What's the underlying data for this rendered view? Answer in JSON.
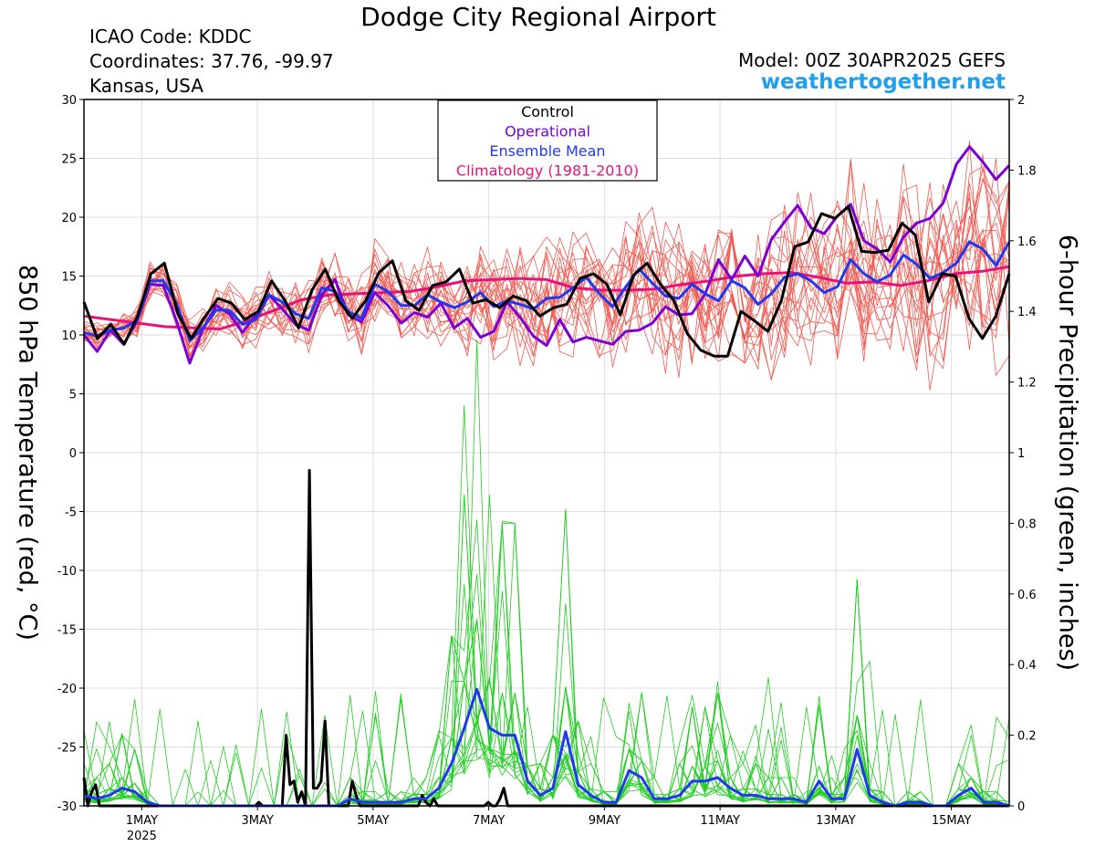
{
  "header": {
    "title": "Dodge City Regional Airport",
    "icao": "ICAO Code: KDDC",
    "coords": "Coordinates: 37.76, -99.97",
    "state": "Kansas, USA",
    "model": "Model: 00Z 30APR2025 GEFS",
    "site": "weathertogether.net"
  },
  "colors": {
    "control": "#000000",
    "operational": "#7b00d4",
    "ensemble_mean": "#2038f0",
    "climatology": "#e8127a",
    "members_temp": "#f05a50",
    "members_precip": "#22cc22"
  },
  "chart_data": {
    "type": "line",
    "title": "Dodge City Regional Airport",
    "ylabel": "850 hPa Temperature (red, °C)",
    "y2label": "6-hour Precipitation (green, inches)",
    "ylim": [
      -30,
      30
    ],
    "y2lim": [
      0,
      2
    ],
    "yticks": [
      "30",
      "25",
      "20",
      "15",
      "10",
      "5",
      "0",
      "-5",
      "-10",
      "-15",
      "-20",
      "-25",
      "-30"
    ],
    "y2ticks": [
      "2",
      "1.8",
      "1.6",
      "1.4",
      "1.2",
      "1",
      "0.8",
      "0.6",
      "0.4",
      "0.2",
      "0"
    ],
    "xlim_days": [
      0,
      16
    ],
    "xticks": [
      {
        "day": 1,
        "label": "1MAY",
        "sub": "2025"
      },
      {
        "day": 3,
        "label": "3MAY"
      },
      {
        "day": 5,
        "label": "5MAY"
      },
      {
        "day": 7,
        "label": "7MAY"
      },
      {
        "day": 9,
        "label": "9MAY"
      },
      {
        "day": 11,
        "label": "11MAY"
      },
      {
        "day": 13,
        "label": "13MAY"
      },
      {
        "day": 15,
        "label": "15MAY"
      }
    ],
    "legend": [
      "Control",
      "Operational",
      "Ensemble Mean",
      "Climatology (1981-2010)"
    ],
    "legend_position": "top-center",
    "grid": true,
    "series": [
      {
        "name": "Control",
        "axis": "temp",
        "values": [
          12.8,
          9.7,
          10.9,
          9.2,
          11.6,
          15.2,
          16.1,
          11.8,
          9.7,
          11.5,
          13.1,
          12.7,
          11.3,
          12.0,
          14.6,
          12.9,
          10.6,
          13.8,
          15.6,
          12.9,
          11.4,
          12.9,
          15.3,
          16.3,
          12.9,
          12.1,
          14.2,
          14.5,
          15.6,
          12.7,
          13.0,
          12.3,
          13.3,
          12.9,
          11.6,
          12.3,
          12.6,
          14.8,
          15.2,
          14.3,
          11.7,
          15.1,
          16.1,
          14.3,
          12.9,
          10.1,
          8.7,
          8.2,
          8.2,
          12.0,
          11.2,
          10.3,
          12.9,
          17.5,
          17.9,
          20.3,
          19.9,
          20.9,
          17.1,
          17.0,
          17.2,
          19.5,
          18.5,
          12.8,
          15.2,
          15.0,
          11.4,
          9.7,
          11.6,
          15.2
        ]
      },
      {
        "name": "Operational",
        "axis": "temp",
        "values": [
          10.0,
          8.6,
          10.4,
          9.2,
          11.1,
          14.3,
          14.2,
          11.2,
          7.6,
          10.5,
          12.5,
          11.8,
          10.2,
          11.7,
          13.4,
          12.2,
          10.9,
          10.4,
          13.4,
          14.7,
          11.7,
          11.1,
          13.6,
          12.5,
          11.0,
          11.9,
          11.5,
          12.7,
          10.6,
          11.4,
          9.8,
          10.3,
          12.8,
          11.5,
          9.9,
          9.1,
          11.3,
          9.4,
          9.8,
          9.5,
          9.2,
          10.3,
          10.4,
          11.0,
          12.4,
          11.7,
          11.8,
          13.5,
          16.4,
          14.7,
          16.7,
          15.0,
          18.1,
          19.6,
          21.0,
          19.1,
          18.6,
          20.1,
          21.1,
          18.0,
          17.3,
          16.2,
          18.3,
          19.5,
          19.9,
          21.2,
          24.5,
          26.0,
          24.7,
          23.2,
          24.4
        ]
      },
      {
        "name": "Ensemble Mean",
        "axis": "temp",
        "values": [
          10.2,
          9.9,
          10.4,
          10.6,
          11.2,
          14.6,
          14.6,
          12.7,
          9.5,
          10.6,
          12.1,
          12.1,
          10.9,
          11.3,
          13.4,
          12.8,
          11.8,
          11.4,
          14.0,
          13.7,
          12.0,
          11.4,
          14.3,
          13.7,
          12.5,
          12.5,
          13.4,
          12.8,
          12.3,
          12.8,
          13.6,
          12.4,
          12.9,
          12.6,
          12.2,
          13.1,
          13.2,
          14.0,
          14.9,
          13.5,
          12.4,
          14.1,
          15.6,
          14.4,
          13.3,
          13.1,
          14.3,
          13.5,
          12.9,
          14.6,
          14.0,
          12.6,
          13.5,
          14.9,
          15.2,
          14.6,
          13.6,
          14.1,
          16.4,
          15.2,
          14.5,
          15.1,
          16.8,
          16.0,
          14.8,
          15.3,
          16.1,
          17.9,
          17.3,
          15.9,
          17.9
        ]
      },
      {
        "name": "Climatology (1981-2010)",
        "axis": "temp",
        "values": [
          11.6,
          11.3,
          11.0,
          10.7,
          10.6,
          10.5,
          11.2,
          12.1,
          13.0,
          13.4,
          13.5,
          13.6,
          13.7,
          14.1,
          14.6,
          14.7,
          14.8,
          14.7,
          14.0,
          13.8,
          13.8,
          13.9,
          14.3,
          14.6,
          15.0,
          15.2,
          15.3,
          14.9,
          14.4,
          14.5,
          14.2,
          14.6,
          15.2,
          15.4,
          15.8
        ]
      },
      {
        "name": "Control precip",
        "axis": "precip",
        "values": [
          0.08,
          0.0,
          0.04,
          0.06,
          0.0,
          0.0,
          0.0,
          0.0,
          0.0,
          0.0,
          0.0,
          0.0,
          0.0,
          0.0,
          0.0,
          0.0,
          0.0,
          0.0,
          0.0,
          0.0,
          0.0,
          0.0,
          0.0,
          0.0,
          0.0,
          0.0,
          0.0,
          0.0,
          0.0,
          0.0,
          0.0,
          0.0,
          0.0,
          0.0,
          0.0,
          0.0,
          0.0,
          0.0,
          0.0,
          0.0,
          0.0,
          0.0,
          0.0,
          0.0,
          0.0,
          0.01,
          0.0,
          0.0,
          0.0,
          0.0,
          0.0,
          0.0,
          0.2,
          0.06,
          0.07,
          0.01,
          0.04,
          0.0,
          0.95,
          0.05,
          0.05,
          0.07,
          0.24,
          0.0,
          0.0,
          0.0,
          0.0,
          0.0,
          0.0,
          0.07,
          0.03,
          0.0,
          0.0,
          0.0,
          0.0,
          0.0,
          0.0,
          0.0,
          0.0,
          0.0,
          0.0,
          0.0,
          0.0,
          0.0,
          0.0,
          0.0,
          0.0,
          0.03,
          0.01,
          0.0,
          0.02,
          0.0,
          0.0,
          0.0,
          0.0,
          0.0,
          0.0,
          0.0,
          0.0,
          0.0,
          0.0,
          0.0,
          0.0,
          0.0,
          0.01,
          0.0,
          0.0,
          0.02,
          0.05,
          0.0,
          0.0,
          0.0,
          0.0,
          0.0,
          0.0,
          0.0,
          0.0,
          0.0,
          0.0,
          0.0,
          0.0,
          0.0,
          0.0,
          0.0,
          0.0,
          0.0,
          0.0,
          0.0,
          0.0,
          0.0,
          0.0,
          0.0,
          0.0,
          0.0,
          0.0,
          0.0,
          0.0,
          0.0,
          0.0,
          0.0,
          0.0,
          0.0,
          0.0,
          0.0,
          0.0,
          0.0,
          0.0,
          0.0,
          0.0,
          0.0,
          0.0,
          0.0,
          0.0,
          0.0,
          0.0,
          0.0,
          0.0,
          0.0,
          0.0,
          0.0,
          0.0,
          0.0,
          0.0,
          0.0,
          0.0,
          0.0,
          0.0,
          0.0,
          0.0,
          0.0,
          0.0,
          0.0,
          0.0,
          0.0,
          0.0,
          0.0,
          0.0,
          0.0,
          0.0,
          0.0,
          0.0,
          0.0,
          0.0,
          0.0,
          0.0,
          0.0,
          0.0,
          0.0,
          0.0,
          0.0,
          0.0,
          0.0,
          0.0,
          0.0,
          0.0,
          0.0,
          0.0,
          0.0,
          0.0,
          0.0,
          0.0,
          0.0,
          0.0,
          0.0,
          0.0,
          0.0,
          0.0,
          0.0,
          0.0,
          0.0,
          0.0,
          0.0,
          0.0,
          0.0,
          0.0,
          0.0,
          0.0,
          0.0,
          0.0,
          0.0,
          0.0,
          0.0,
          0.0,
          0.0,
          0.0,
          0.0,
          0.0,
          0.0,
          0.0,
          0.0,
          0.0,
          0.0,
          0.0,
          0.0,
          0.0,
          0.0,
          0.0,
          0.0,
          0.0
        ]
      },
      {
        "name": "Ensemble Mean precip",
        "axis": "precip",
        "values": [
          0.03,
          0.02,
          0.03,
          0.05,
          0.04,
          0.01,
          0.0,
          0.0,
          0.0,
          0.0,
          0.0,
          0.0,
          0.0,
          0.0,
          0.0,
          0.0,
          0.0,
          0.0,
          0.0,
          0.0,
          0.0,
          0.02,
          0.01,
          0.01,
          0.01,
          0.01,
          0.02,
          0.02,
          0.05,
          0.12,
          0.22,
          0.33,
          0.22,
          0.2,
          0.2,
          0.07,
          0.03,
          0.05,
          0.21,
          0.06,
          0.03,
          0.01,
          0.01,
          0.1,
          0.08,
          0.02,
          0.02,
          0.03,
          0.07,
          0.07,
          0.08,
          0.05,
          0.03,
          0.03,
          0.02,
          0.02,
          0.02,
          0.01,
          0.07,
          0.02,
          0.02,
          0.16,
          0.03,
          0.01,
          0.0,
          0.01,
          0.01,
          0.0,
          0.0,
          0.03,
          0.05,
          0.01,
          0.01,
          0.0
        ]
      }
    ]
  }
}
